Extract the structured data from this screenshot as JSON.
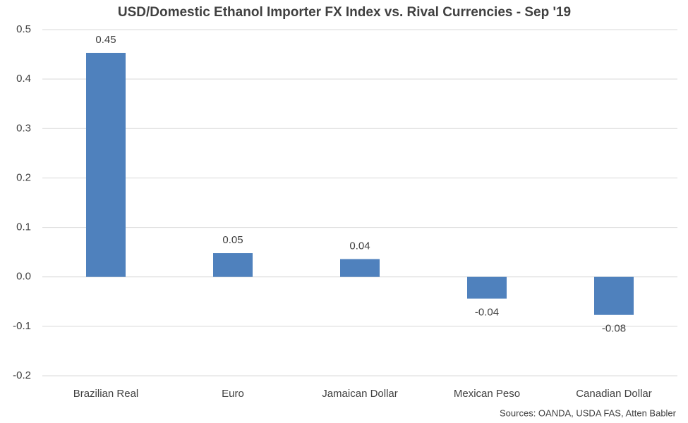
{
  "chart_data": {
    "type": "bar",
    "title": "USD/Domestic Ethanol Importer FX Index vs. Rival Currencies - Sep '19",
    "categories": [
      "Brazilian Real",
      "Euro",
      "Jamaican Dollar",
      "Mexican Peso",
      "Canadian Dollar"
    ],
    "values": [
      0.453,
      0.048,
      0.036,
      -0.044,
      -0.077
    ],
    "value_labels": [
      "0.45",
      "0.05",
      "0.04",
      "-0.04",
      "-0.08"
    ],
    "color": "#4f81bd",
    "ylim": [
      -0.2,
      0.5
    ],
    "yticks": [
      0.5,
      0.4,
      0.3,
      0.2,
      0.1,
      {
        "value": 0,
        "label": "0.0"
      },
      -0.1,
      -0.2
    ],
    "grid": true,
    "source": "Sources: OANDA, USDA FAS, Atten Babler"
  }
}
